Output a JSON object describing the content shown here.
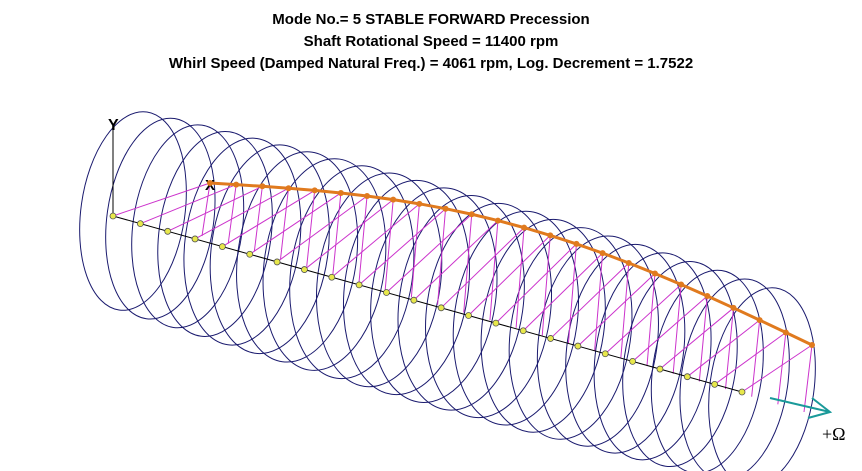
{
  "title_lines": [
    "Mode No.= 5  STABLE FORWARD Precession",
    "Shaft Rotational Speed = 11400 rpm",
    "Whirl Speed (Damped Natural Freq.) = 4061 rpm, Log. Decrement = 1.7522"
  ],
  "axis_labels": {
    "y": "Y",
    "x": "X",
    "rotation": "+Ω"
  }
}
